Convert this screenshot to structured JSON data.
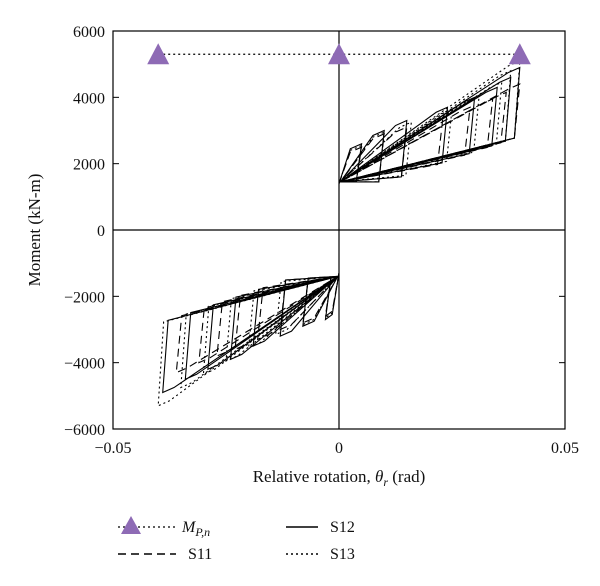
{
  "chart_data": {
    "type": "line",
    "title": "",
    "xlabel": "Relative rotation, θr (rad)",
    "xlabel_parts": {
      "main": "Relative rotation, ",
      "symbol": "θ",
      "subscript": "r",
      "unit": " (rad)"
    },
    "ylabel": "Moment (kN-m)",
    "xlim": [
      -0.05,
      0.05
    ],
    "ylim": [
      -6000,
      6000
    ],
    "x_ticks": [
      -0.05,
      0,
      0.05
    ],
    "x_tick_labels": [
      "−0.05",
      "0",
      "0.05"
    ],
    "y_ticks": [
      -6000,
      -4000,
      -2000,
      0,
      2000,
      4000,
      6000
    ],
    "y_tick_labels": [
      "−6000",
      "−4000",
      "−2000",
      "0",
      "2000",
      "4000",
      "6000"
    ],
    "grid": false,
    "zero_lines": true,
    "legend_position": "bottom",
    "legend": [
      {
        "label": "M",
        "subscript": "P,n",
        "style": "marker-dotted",
        "color": "#8e6bb5"
      },
      {
        "label": "S12",
        "style": "solid"
      },
      {
        "label": "S11",
        "style": "dashed"
      },
      {
        "label": "S13",
        "style": "dotted"
      }
    ],
    "mpn": {
      "x": [
        -0.04,
        0,
        0.04
      ],
      "y": [
        5300,
        5300,
        5300
      ]
    },
    "series": [
      {
        "name": "S11",
        "style": "dashed",
        "pos_amplitudes": [
          0.005,
          0.01,
          0.015,
          0.023,
          0.029,
          0.034,
          0.037,
          0.04
        ],
        "pos_peak_moment": [
          2500,
          2900,
          3100,
          3400,
          3700,
          3950,
          4150,
          4400
        ],
        "neg_amplitudes": [
          -0.003,
          -0.008,
          -0.013,
          -0.018,
          -0.023,
          -0.027,
          -0.031,
          -0.036
        ],
        "neg_peak_moment": [
          -2600,
          -2800,
          -3000,
          -3300,
          -3600,
          -3800,
          -4000,
          -4300
        ]
      },
      {
        "name": "S12",
        "style": "solid",
        "pos_amplitudes": [
          0.005,
          0.01,
          0.015,
          0.024,
          0.03,
          0.035,
          0.038,
          0.04
        ],
        "pos_peak_moment": [
          2600,
          3000,
          3300,
          3700,
          4000,
          4300,
          4600,
          4900
        ],
        "neg_amplitudes": [
          -0.003,
          -0.008,
          -0.013,
          -0.019,
          -0.024,
          -0.029,
          -0.034,
          -0.039
        ],
        "neg_peak_moment": [
          -2700,
          -2900,
          -3200,
          -3500,
          -3900,
          -4200,
          -4500,
          -4900
        ]
      },
      {
        "name": "S13",
        "style": "dotted",
        "pos_amplitudes": [
          0.005,
          0.01,
          0.016,
          0.025,
          0.031,
          0.036,
          0.038,
          0.04
        ],
        "pos_peak_moment": [
          2550,
          2950,
          3250,
          3650,
          4050,
          4450,
          4800,
          5100
        ],
        "neg_amplitudes": [
          -0.003,
          -0.008,
          -0.014,
          -0.02,
          -0.025,
          -0.03,
          -0.035,
          -0.04
        ],
        "neg_peak_moment": [
          -2650,
          -2850,
          -3150,
          -3550,
          -3950,
          -4350,
          -4750,
          -5300
        ]
      }
    ]
  }
}
